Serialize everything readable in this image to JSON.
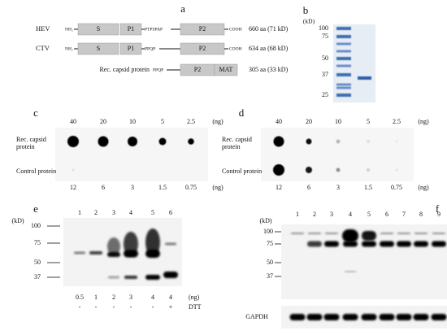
{
  "panel_a": {
    "label": "a",
    "rows": [
      {
        "label": "HEV",
        "nterm": "NH₂",
        "s": "S",
        "p1": "P1",
        "linker": "PTPSPAP",
        "p2": "P2",
        "cterm": "COOH",
        "size": "660 aa (71 kD)"
      },
      {
        "label": "CTV",
        "nterm": "NH₂",
        "s": "S",
        "p1": "P1",
        "linker": "PPQP",
        "p2": "P2",
        "cterm": "COOH",
        "size": "634 aa (68 kD)"
      }
    ],
    "rec": {
      "label": "Rec. capsid protein",
      "linker": "PPQP",
      "p2": "P2",
      "mat": "MAT",
      "size": "305 aa (33 kD)"
    }
  },
  "panel_b": {
    "label": "b",
    "unit": "(kD)",
    "markers": [
      "100",
      "75",
      "50",
      "37",
      "25"
    ]
  },
  "panel_c": {
    "label": "c",
    "top": [
      "40",
      "20",
      "10",
      "5",
      "2.5"
    ],
    "top_unit": "(ng)",
    "rows": [
      "Rec. capsid protein",
      "Control protein"
    ],
    "bottom": [
      "12",
      "6",
      "3",
      "1.5",
      "0.75"
    ],
    "bottom_unit": "(ng)"
  },
  "panel_d": {
    "label": "d",
    "top": [
      "40",
      "20",
      "10",
      "5",
      "2.5"
    ],
    "top_unit": "(ng)",
    "rows": [
      "Rec. capsid protein",
      "Control protein"
    ],
    "bottom": [
      "12",
      "6",
      "3",
      "1.5",
      "0.75"
    ],
    "bottom_unit": "(ng)"
  },
  "panel_e": {
    "label": "e",
    "unit": "(kD)",
    "markers": [
      "100",
      "75",
      "50",
      "37"
    ],
    "lanes": [
      "1",
      "2",
      "3",
      "4",
      "5",
      "6"
    ],
    "amounts": [
      "0.5",
      "1",
      "2",
      "3",
      "4",
      "4"
    ],
    "amount_unit": "(ng)",
    "dtt": [
      "-",
      "-",
      "-",
      "-",
      "-",
      "+"
    ],
    "dtt_label": "DTT"
  },
  "panel_f": {
    "label": "f",
    "unit": "(kD)",
    "markers": [
      "100",
      "75",
      "50",
      "37"
    ],
    "lanes": [
      "1",
      "2",
      "3",
      "4",
      "5",
      "6",
      "7",
      "8",
      "9"
    ],
    "loading": "GAPDH"
  }
}
